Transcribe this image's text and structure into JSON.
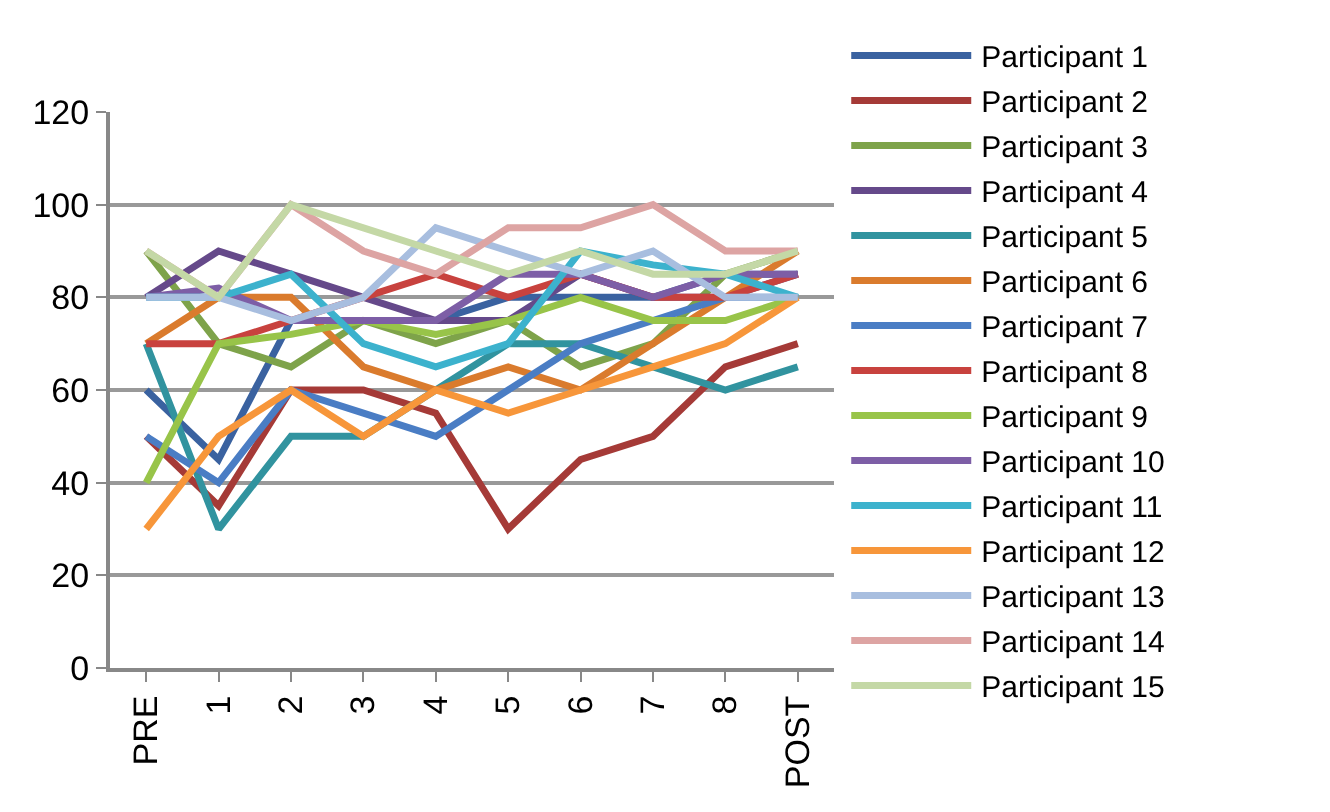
{
  "chart_data": {
    "type": "line",
    "categories": [
      "PRE",
      "1",
      "2",
      "3",
      "4",
      "5",
      "6",
      "7",
      "8",
      "POST"
    ],
    "series": [
      {
        "name": "Participant 1",
        "color": "#3a62a0",
        "values": [
          60,
          45,
          75,
          75,
          75,
          80,
          80,
          80,
          85,
          85
        ]
      },
      {
        "name": "Participant 2",
        "color": "#a53a37",
        "values": [
          50,
          35,
          60,
          60,
          55,
          30,
          45,
          50,
          65,
          70
        ]
      },
      {
        "name": "Participant 3",
        "color": "#7ea34a",
        "values": [
          90,
          70,
          65,
          75,
          70,
          75,
          65,
          70,
          85,
          90
        ]
      },
      {
        "name": "Participant 4",
        "color": "#65498a",
        "values": [
          80,
          90,
          85,
          80,
          75,
          75,
          85,
          80,
          80,
          85
        ]
      },
      {
        "name": "Participant 5",
        "color": "#31939f",
        "values": [
          70,
          30,
          50,
          50,
          60,
          70,
          70,
          65,
          60,
          65
        ]
      },
      {
        "name": "Participant 6",
        "color": "#da7b2d",
        "values": [
          70,
          80,
          80,
          65,
          60,
          65,
          60,
          70,
          80,
          90
        ]
      },
      {
        "name": "Participant 7",
        "color": "#4a7dc4",
        "values": [
          50,
          40,
          60,
          55,
          50,
          60,
          70,
          75,
          80,
          80
        ]
      },
      {
        "name": "Participant 8",
        "color": "#c8423e",
        "values": [
          70,
          70,
          75,
          80,
          85,
          80,
          85,
          80,
          80,
          85
        ]
      },
      {
        "name": "Participant 9",
        "color": "#98c449",
        "values": [
          40,
          70,
          72,
          75,
          72,
          75,
          80,
          75,
          75,
          80
        ]
      },
      {
        "name": "Participant 10",
        "color": "#7d5ea6",
        "values": [
          80,
          82,
          75,
          75,
          75,
          85,
          85,
          80,
          85,
          85
        ]
      },
      {
        "name": "Participant 11",
        "color": "#3cb2cd",
        "values": [
          80,
          80,
          85,
          70,
          65,
          70,
          90,
          87,
          85,
          80
        ]
      },
      {
        "name": "Participant 12",
        "color": "#f7963a",
        "values": [
          30,
          50,
          60,
          50,
          60,
          55,
          60,
          65,
          70,
          80
        ]
      },
      {
        "name": "Participant 13",
        "color": "#a8bedf",
        "values": [
          80,
          80,
          75,
          80,
          95,
          90,
          85,
          90,
          80,
          80
        ]
      },
      {
        "name": "Participant 14",
        "color": "#dda4a3",
        "values": [
          90,
          80,
          100,
          90,
          85,
          95,
          95,
          100,
          90,
          90
        ]
      },
      {
        "name": "Participant 15",
        "color": "#c4d8a6",
        "values": [
          90,
          80,
          100,
          95,
          90,
          85,
          90,
          85,
          85,
          90
        ]
      }
    ],
    "ylim": [
      0,
      120
    ],
    "yticks": [
      0,
      20,
      40,
      60,
      80,
      100,
      120
    ],
    "grid": "y",
    "legend": "right",
    "marker": "none",
    "line_style": "solid"
  }
}
